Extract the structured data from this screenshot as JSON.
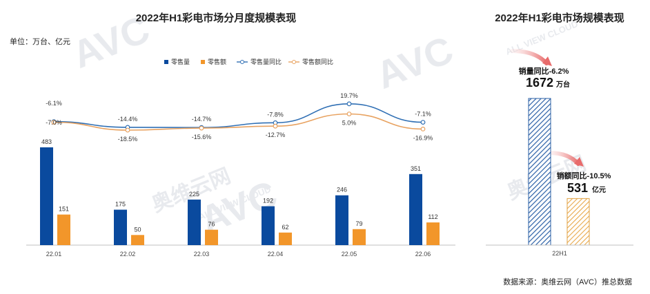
{
  "left_chart": {
    "title": "2022年H1彩电市场分月度规模表现",
    "unit": "单位：万台、亿元",
    "legend": [
      "零售量",
      "零售额",
      "零售量同比",
      "零售额同比"
    ],
    "colors": {
      "volume": "#0a4a9e",
      "value": "#f2962a",
      "volume_yoy": "#2f6fb4",
      "value_yoy": "#e8a260"
    }
  },
  "right_chart": {
    "title": "2022年H1彩电市场规模表现",
    "category": "22H1",
    "volume_note": "销量同比-6.2%",
    "volume_value": "1672",
    "volume_unit": "万台",
    "value_note": "销额同比-10.5%",
    "value_value": "531",
    "value_unit": "亿元"
  },
  "source": "数据来源：奥维云网（AVC）推总数据",
  "watermark": {
    "logo": "AVC",
    "cn": "奥维云网",
    "en": "ALL VIEW CLOUD"
  },
  "chart_data": [
    {
      "type": "bar",
      "title": "2022年H1彩电市场分月度规模表现",
      "categories": [
        "22.01",
        "22.02",
        "22.03",
        "22.04",
        "22.05",
        "22.06"
      ],
      "series": [
        {
          "name": "零售量",
          "values": [
            483,
            175,
            225,
            192,
            246,
            351
          ],
          "labels": [
            "483",
            "175",
            "225",
            "192",
            "246",
            "351"
          ]
        },
        {
          "name": "零售额",
          "values": [
            151,
            50,
            76,
            62,
            79,
            112
          ],
          "labels": [
            "151",
            "50",
            "76",
            "62",
            "79",
            "112"
          ]
        }
      ],
      "line_series": [
        {
          "name": "零售量同比",
          "values": [
            -6.1,
            -14.4,
            -14.7,
            -7.8,
            19.7,
            -7.1
          ],
          "labels": [
            "-6.1%",
            "-14.4%",
            "-14.7%",
            "-7.8%",
            "19.7%",
            "-7.1%"
          ]
        },
        {
          "name": "零售额同比",
          "values": [
            -7.0,
            -18.5,
            -15.6,
            -12.7,
            5.0,
            -16.9
          ],
          "labels": [
            "-7.0%",
            "-18.5%",
            "-15.6%",
            "-12.7%",
            "5.0%",
            "-16.9%"
          ]
        }
      ],
      "legend_position": "top"
    },
    {
      "type": "bar",
      "title": "2022年H1彩电市场规模表现",
      "categories": [
        "22H1"
      ],
      "series": [
        {
          "name": "销量",
          "values": [
            1672
          ]
        },
        {
          "name": "销额",
          "values": [
            531
          ]
        }
      ]
    }
  ]
}
